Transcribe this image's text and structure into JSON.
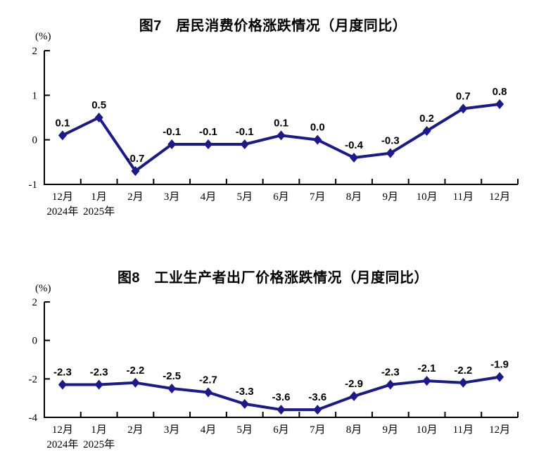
{
  "page": {
    "background_color": "#ffffff"
  },
  "chart_data": [
    {
      "type": "line",
      "title": "图7　居民消费价格涨跌情况（月度同比）",
      "ylabel": "(%)",
      "xlabel": "",
      "categories": [
        "12月",
        "1月",
        "2月",
        "3月",
        "4月",
        "5月",
        "6月",
        "7月",
        "8月",
        "9月",
        "10月",
        "11月",
        "12月"
      ],
      "year_labels": [
        "2024年",
        "2025年"
      ],
      "values": [
        0.1,
        0.5,
        -0.7,
        -0.1,
        -0.1,
        -0.1,
        0.1,
        0.0,
        -0.4,
        -0.3,
        0.2,
        0.7,
        0.8
      ],
      "data_labels": [
        "0.1",
        "0.5",
        "-0.7",
        "-0.1",
        "-0.1",
        "-0.1",
        "0.1",
        "0.0",
        "-0.4",
        "-0.3",
        "0.2",
        "0.7",
        "0.8"
      ],
      "ylim": [
        -1,
        2
      ],
      "yticks": [
        2,
        1,
        0,
        -1
      ],
      "grid": false,
      "legend_position": "none",
      "line_color": "#1a1a8c",
      "marker": "diamond",
      "axis_color": "#000000"
    },
    {
      "type": "line",
      "title": "图8　工业生产者出厂价格涨跌情况（月度同比）",
      "ylabel": "(%)",
      "xlabel": "",
      "categories": [
        "12月",
        "1月",
        "2月",
        "3月",
        "4月",
        "5月",
        "6月",
        "7月",
        "8月",
        "9月",
        "10月",
        "11月",
        "12月"
      ],
      "year_labels": [
        "2024年",
        "2025年"
      ],
      "values": [
        -2.3,
        -2.3,
        -2.2,
        -2.5,
        -2.7,
        -3.3,
        -3.6,
        -3.6,
        -2.9,
        -2.3,
        -2.1,
        -2.2,
        -1.9
      ],
      "data_labels": [
        "-2.3",
        "-2.3",
        "-2.2",
        "-2.5",
        "-2.7",
        "-3.3",
        "-3.6",
        "-3.6",
        "-2.9",
        "-2.3",
        "-2.1",
        "-2.2",
        "-1.9"
      ],
      "ylim": [
        -4,
        2
      ],
      "yticks": [
        2,
        0,
        -2,
        -4
      ],
      "grid": false,
      "legend_position": "none",
      "line_color": "#1a1a8c",
      "marker": "diamond",
      "axis_color": "#000000"
    }
  ]
}
